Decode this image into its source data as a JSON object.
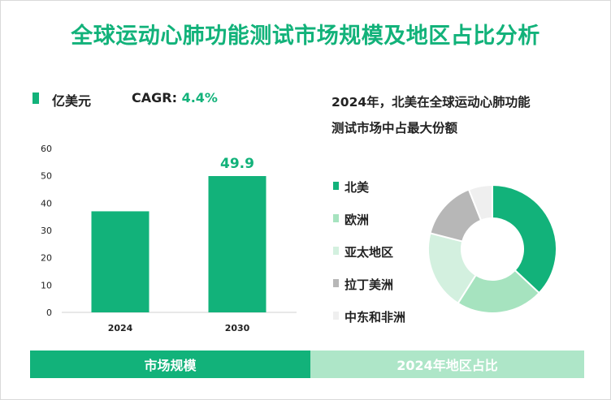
{
  "title": "全球运动心肺功能测试市场规模及地区占比分析",
  "left_panel": {
    "unit_label": "亿美元",
    "cagr_label": "CAGR:",
    "cagr_value": "4.4%",
    "band_label": "市场规模"
  },
  "right_panel": {
    "title_line1": "2024年，北美在全球运动心肺功能",
    "title_line2": "测试市场中占最大份额",
    "band_label": "2024年地区占比"
  },
  "colors": {
    "accent": "#12b27a",
    "band_right": "#aee6c8"
  },
  "chart_data": [
    {
      "type": "bar",
      "categories": [
        "2024",
        "2030"
      ],
      "values": [
        37.0,
        49.9
      ],
      "value_labels": [
        "",
        "49.9"
      ],
      "ylim": [
        0,
        60
      ],
      "yticks": [
        0,
        10,
        20,
        30,
        40,
        50,
        60
      ],
      "grid": false,
      "color": "#12b27a"
    },
    {
      "type": "pie",
      "donut": true,
      "legend_position": "left",
      "slices": [
        {
          "name": "北美",
          "value": 37,
          "color": "#12b27a"
        },
        {
          "name": "欧洲",
          "value": 22,
          "color": "#a6e3bf"
        },
        {
          "name": "亚太地区",
          "value": 20,
          "color": "#d3f0df"
        },
        {
          "name": "拉丁美洲",
          "value": 15,
          "color": "#b7b7b7"
        },
        {
          "name": "中东和非洲",
          "value": 6,
          "color": "#efefef"
        }
      ]
    }
  ]
}
